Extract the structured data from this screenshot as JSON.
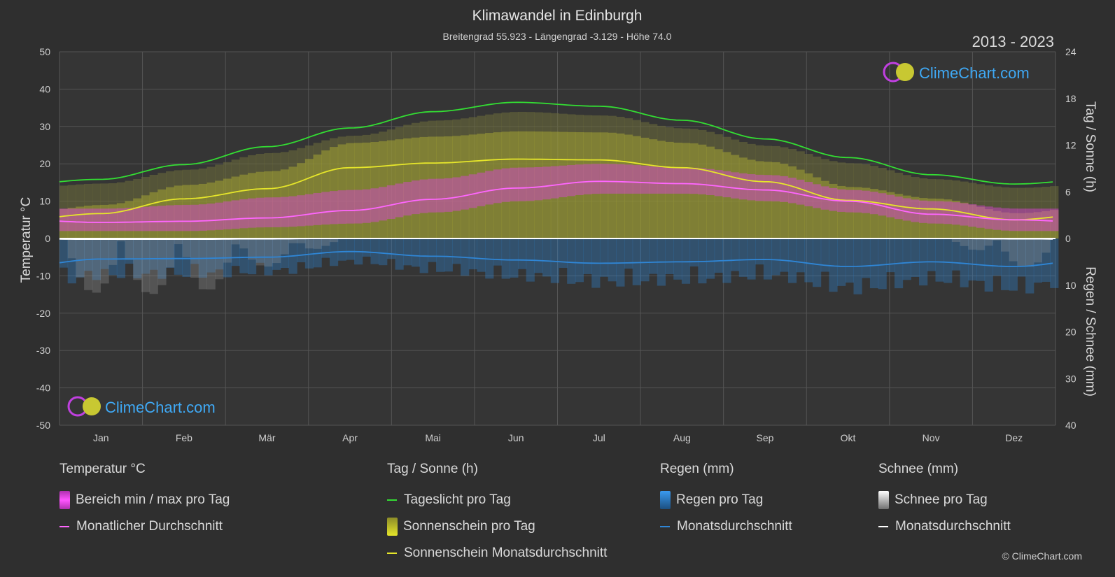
{
  "header": {
    "title": "Klimawandel in Edinburgh",
    "subtitle": "Breitengrad 55.923 - Längengrad -3.129 - Höhe 74.0",
    "period": "2013 - 2023"
  },
  "axes": {
    "left_title": "Temperatur °C",
    "right_top_title": "Tag / Sonne (h)",
    "right_bottom_title": "Regen / Schnee (mm)",
    "left_ticks": [
      "50",
      "40",
      "30",
      "20",
      "10",
      "0",
      "-10",
      "-20",
      "-30",
      "-40",
      "-50"
    ],
    "right_top_ticks": [
      "24",
      "18",
      "12",
      "6",
      "0"
    ],
    "right_bottom_ticks": [
      "10",
      "20",
      "30",
      "40"
    ]
  },
  "legend": {
    "temperature": {
      "heading": "Temperatur °C",
      "range": "Bereich min / max pro Tag",
      "avg": "Monatlicher Durchschnitt"
    },
    "sun": {
      "heading": "Tag / Sonne (h)",
      "daylight": "Tageslicht pro Tag",
      "sunshine": "Sonnenschein pro Tag",
      "sunshine_avg": "Sonnenschein Monatsdurchschnitt"
    },
    "rain": {
      "heading": "Regen (mm)",
      "per_day": "Regen pro Tag",
      "avg": "Monatsdurchschnitt"
    },
    "snow": {
      "heading": "Schnee (mm)",
      "per_day": "Schnee pro Tag",
      "avg": "Monatsdurchschnitt"
    }
  },
  "logo": {
    "text": "ClimeChart.com"
  },
  "copyright": "© ClimeChart.com",
  "colors": {
    "background": "#2f2f2f",
    "daylight": "#33dd33",
    "sunshine_avg": "#e6e62a",
    "temp_avg": "#ff66ff",
    "temp_range": "#e040e0",
    "sunshine_fill": "#b4b432",
    "rain": "#2f86d6",
    "snow": "#ffffff",
    "logo": "#3fa9f5"
  },
  "chart_data": {
    "type": "line",
    "months": [
      "Jan",
      "Feb",
      "Mär",
      "Apr",
      "Mai",
      "Jun",
      "Jul",
      "Aug",
      "Sep",
      "Okt",
      "Nov",
      "Dez"
    ],
    "temp_range": {
      "ylim": [
        -50,
        50
      ]
    },
    "sun_range": {
      "ylim": [
        0,
        24
      ]
    },
    "precip_range": {
      "ylim": [
        0,
        40
      ]
    },
    "series": [
      {
        "name": "Tageslicht pro Tag",
        "axis": "sun",
        "values": [
          7.6,
          9.5,
          11.8,
          14.2,
          16.3,
          17.5,
          17.0,
          15.2,
          12.8,
          10.4,
          8.2,
          7.0
        ]
      },
      {
        "name": "Sonnenschein Monatsdurchschnitt",
        "axis": "sun",
        "values": [
          3.2,
          5.1,
          6.4,
          9.1,
          9.7,
          10.2,
          10.1,
          9.1,
          7.3,
          4.9,
          3.8,
          2.4
        ]
      },
      {
        "name": "Monatlicher Durchschnitt",
        "axis": "temp",
        "values": [
          4.3,
          4.6,
          5.5,
          7.5,
          10.5,
          13.5,
          15.3,
          14.7,
          13.0,
          10.0,
          6.5,
          5.0
        ]
      },
      {
        "name": "Regen Monatsdurchschnitt",
        "axis": "precip",
        "values": [
          4.4,
          4.3,
          4.0,
          2.8,
          3.8,
          4.6,
          5.3,
          5.0,
          4.5,
          6.0,
          5.0,
          6.0
        ]
      },
      {
        "name": "Schnee Monatsdurchschnitt",
        "axis": "precip",
        "values": [
          0.2,
          0.2,
          0.1,
          0,
          0,
          0,
          0,
          0,
          0,
          0,
          0,
          0.1
        ]
      }
    ],
    "temp_band": {
      "min": [
        2,
        2,
        3,
        4,
        7,
        10,
        12,
        12,
        10,
        7,
        4,
        2
      ],
      "max": [
        8,
        9,
        11,
        13,
        16,
        19,
        20,
        19,
        17,
        13,
        10,
        8
      ]
    }
  }
}
